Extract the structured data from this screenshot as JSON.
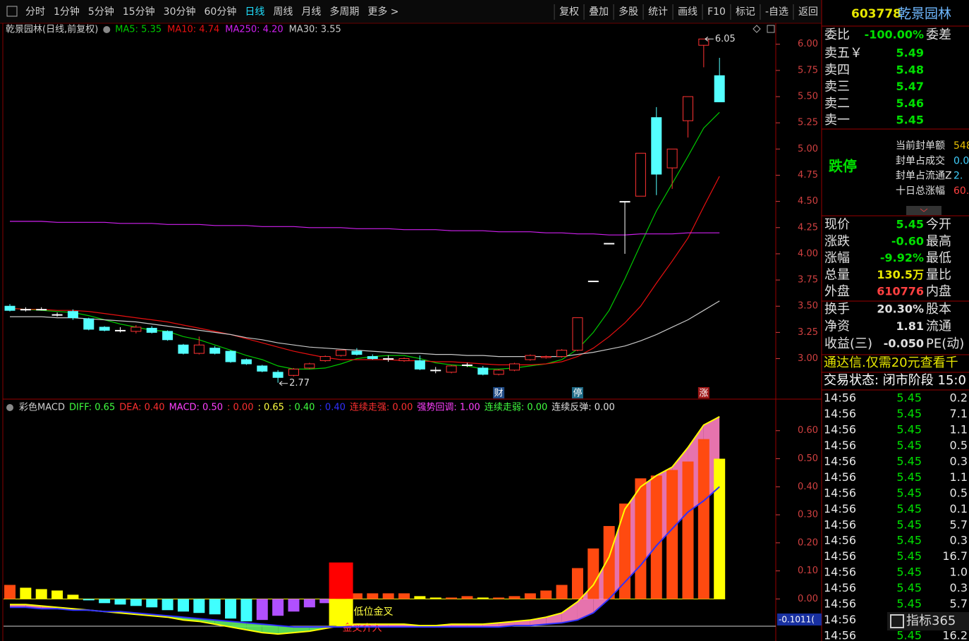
{
  "toolbar": {
    "left": [
      "分时",
      "1分钟",
      "5分钟",
      "15分钟",
      "30分钟",
      "60分钟",
      "日线",
      "周线",
      "月线",
      "多周期",
      "更多 >"
    ],
    "active_index": 6,
    "right": [
      "复权",
      "叠加",
      "多股",
      "统计",
      "画线",
      "F10",
      "标记",
      "-自选",
      "返回"
    ]
  },
  "chart_data": [
    {
      "type": "candlestick",
      "title": "乾景园林(日线,前复权)",
      "up_color": "#ff3232",
      "down_color": "#54ffff",
      "flat_color": "#ffffff",
      "candles": [
        [
          3.5,
          3.52,
          3.45,
          3.46
        ],
        [
          3.47,
          3.49,
          3.45,
          3.47
        ],
        [
          3.47,
          3.49,
          3.46,
          3.47
        ],
        [
          3.42,
          3.44,
          3.4,
          3.42
        ],
        [
          3.45,
          3.47,
          3.37,
          3.39
        ],
        [
          3.38,
          3.39,
          3.27,
          3.28
        ],
        [
          3.3,
          3.31,
          3.26,
          3.27
        ],
        [
          3.27,
          3.3,
          3.25,
          3.27
        ],
        [
          3.26,
          3.32,
          3.24,
          3.3
        ],
        [
          3.29,
          3.31,
          3.24,
          3.25
        ],
        [
          3.26,
          3.27,
          3.17,
          3.18
        ],
        [
          3.13,
          3.14,
          3.04,
          3.05
        ],
        [
          3.05,
          3.21,
          3.04,
          3.13
        ],
        [
          3.1,
          3.12,
          3.04,
          3.05
        ],
        [
          3.07,
          3.08,
          2.96,
          2.97
        ],
        [
          2.99,
          3.0,
          2.94,
          2.95
        ],
        [
          2.93,
          2.94,
          2.87,
          2.88
        ],
        [
          2.87,
          2.89,
          2.77,
          2.82
        ],
        [
          2.84,
          2.91,
          2.83,
          2.9
        ],
        [
          2.91,
          2.96,
          2.9,
          2.95
        ],
        [
          2.98,
          3.03,
          2.97,
          3.02
        ],
        [
          3.03,
          3.08,
          3.02,
          3.08
        ],
        [
          3.07,
          3.1,
          3.03,
          3.04
        ],
        [
          3.02,
          3.04,
          2.99,
          3.0
        ],
        [
          3.0,
          3.03,
          2.97,
          3.0
        ],
        [
          2.98,
          3.01,
          2.97,
          3.0
        ],
        [
          2.98,
          3.03,
          2.89,
          2.9
        ],
        [
          2.89,
          2.92,
          2.86,
          2.89
        ],
        [
          2.87,
          2.94,
          2.86,
          2.93
        ],
        [
          2.94,
          2.96,
          2.92,
          2.94
        ],
        [
          2.91,
          2.93,
          2.84,
          2.85
        ],
        [
          2.85,
          2.9,
          2.84,
          2.89
        ],
        [
          2.89,
          2.96,
          2.88,
          2.95
        ],
        [
          2.99,
          3.04,
          2.98,
          3.03
        ],
        [
          3.01,
          3.03,
          3.0,
          3.02
        ],
        [
          3.02,
          3.09,
          3.01,
          3.08
        ],
        [
          3.08,
          3.39,
          3.07,
          3.39
        ],
        [
          3.74,
          3.74,
          3.74,
          3.74
        ],
        [
          4.1,
          4.1,
          4.1,
          4.1
        ],
        [
          4.5,
          4.5,
          4.0,
          4.5
        ],
        [
          4.55,
          4.96,
          4.55,
          4.96
        ],
        [
          5.3,
          5.4,
          4.56,
          4.76
        ],
        [
          4.82,
          5.0,
          4.62,
          5.0
        ],
        [
          5.27,
          5.5,
          5.11,
          5.5
        ],
        [
          5.99,
          6.05,
          5.78,
          6.05
        ],
        [
          5.7,
          5.87,
          5.45,
          5.45
        ]
      ],
      "series": [
        {
          "name": "MA5: 5.35",
          "color": "#00c800",
          "values": [
            3.48,
            3.47,
            3.46,
            3.45,
            3.44,
            3.41,
            3.37,
            3.33,
            3.3,
            3.27,
            3.26,
            3.21,
            3.18,
            3.13,
            3.08,
            3.03,
            2.99,
            2.93,
            2.9,
            2.9,
            2.91,
            2.95,
            3.0,
            3.02,
            3.03,
            3.03,
            3.0,
            2.96,
            2.94,
            2.93,
            2.9,
            2.9,
            2.91,
            2.93,
            2.95,
            2.99,
            3.09,
            3.25,
            3.46,
            3.76,
            4.09,
            4.41,
            4.67,
            4.93,
            5.2,
            5.35
          ]
        },
        {
          "name": "MA10: 4.74",
          "color": "#e81010",
          "values": [
            3.48,
            3.47,
            3.47,
            3.46,
            3.46,
            3.45,
            3.43,
            3.41,
            3.39,
            3.37,
            3.35,
            3.32,
            3.29,
            3.26,
            3.23,
            3.19,
            3.15,
            3.11,
            3.07,
            3.04,
            3.01,
            2.99,
            2.99,
            2.99,
            2.99,
            2.98,
            2.98,
            2.97,
            2.97,
            2.96,
            2.95,
            2.94,
            2.94,
            2.94,
            2.95,
            2.97,
            3.02,
            3.1,
            3.21,
            3.34,
            3.5,
            3.72,
            3.93,
            4.15,
            4.45,
            4.74
          ]
        },
        {
          "name": "MA250: 4.20",
          "color": "#d020f0",
          "values": [
            4.31,
            4.31,
            4.31,
            4.3,
            4.3,
            4.3,
            4.3,
            4.29,
            4.29,
            4.29,
            4.28,
            4.28,
            4.28,
            4.27,
            4.27,
            4.27,
            4.26,
            4.26,
            4.26,
            4.25,
            4.25,
            4.25,
            4.24,
            4.24,
            4.24,
            4.23,
            4.23,
            4.23,
            4.22,
            4.22,
            4.22,
            4.21,
            4.21,
            4.21,
            4.2,
            4.2,
            4.19,
            4.19,
            4.18,
            4.18,
            4.19,
            4.19,
            4.19,
            4.2,
            4.2,
            4.2
          ]
        },
        {
          "name": "MA30: 3.55",
          "color": "#c8c8c8",
          "values": [
            3.4,
            3.4,
            3.4,
            3.39,
            3.39,
            3.38,
            3.37,
            3.36,
            3.35,
            3.33,
            3.31,
            3.29,
            3.27,
            3.25,
            3.23,
            3.2,
            3.18,
            3.15,
            3.13,
            3.11,
            3.1,
            3.09,
            3.08,
            3.07,
            3.06,
            3.05,
            3.05,
            3.04,
            3.04,
            3.03,
            3.03,
            3.02,
            3.02,
            3.02,
            3.02,
            3.02,
            3.04,
            3.06,
            3.09,
            3.12,
            3.17,
            3.23,
            3.3,
            3.37,
            3.46,
            3.55
          ]
        }
      ],
      "events": [
        {
          "label": "财",
          "at": 31,
          "color": "#1e4a86"
        },
        {
          "label": "停",
          "at": 36,
          "color": "#1e6a86"
        },
        {
          "label": "涨",
          "at": 44,
          "color": "#a01818"
        }
      ],
      "ylim": [
        2.62,
        6.2
      ],
      "yticks": [
        {
          "value": 6,
          "label": "6.00"
        },
        {
          "value": 5.75,
          "label": "5.75"
        },
        {
          "value": 5.5,
          "label": "5.50"
        },
        {
          "value": 5.25,
          "label": "5.25"
        },
        {
          "value": 5,
          "label": "5.00"
        },
        {
          "value": 4.75,
          "label": "4.75"
        },
        {
          "value": 4.5,
          "label": "4.50"
        },
        {
          "value": 4.25,
          "label": "4.25"
        },
        {
          "value": 4,
          "label": "4.00"
        },
        {
          "value": 3.75,
          "label": "3.75"
        },
        {
          "value": 3.5,
          "label": "3.50"
        },
        {
          "value": 3.25,
          "label": "3.25"
        },
        {
          "value": 3,
          "label": "3.00"
        }
      ]
    },
    {
      "type": "macd",
      "title": "彩色MACD",
      "series": [
        {
          "name": "DIFF: 0.65",
          "color": "#ffff00",
          "values": [
            -0.02,
            -0.02,
            -0.025,
            -0.03,
            -0.035,
            -0.04,
            -0.045,
            -0.05,
            -0.055,
            -0.06,
            -0.065,
            -0.075,
            -0.08,
            -0.09,
            -0.1,
            -0.11,
            -0.12,
            -0.125,
            -0.12,
            -0.115,
            -0.105,
            -0.095,
            -0.09,
            -0.09,
            -0.09,
            -0.09,
            -0.095,
            -0.095,
            -0.09,
            -0.09,
            -0.09,
            -0.085,
            -0.08,
            -0.075,
            -0.065,
            -0.05,
            -0.01,
            0.05,
            0.15,
            0.32,
            0.4,
            0.44,
            0.47,
            0.54,
            0.62,
            0.65
          ]
        },
        {
          "name": "DEA: 0.40",
          "color": "#3030ff",
          "values": [
            -0.03,
            -0.03,
            -0.035,
            -0.035,
            -0.04,
            -0.04,
            -0.045,
            -0.045,
            -0.05,
            -0.055,
            -0.06,
            -0.065,
            -0.07,
            -0.075,
            -0.08,
            -0.085,
            -0.09,
            -0.095,
            -0.1,
            -0.1,
            -0.1,
            -0.1,
            -0.1,
            -0.1,
            -0.1,
            -0.1,
            -0.1,
            -0.1,
            -0.1,
            -0.1,
            -0.1,
            -0.1,
            -0.095,
            -0.095,
            -0.09,
            -0.085,
            -0.075,
            -0.05,
            0,
            0.06,
            0.12,
            0.19,
            0.25,
            0.31,
            0.35,
            0.4
          ]
        }
      ],
      "histogram": {
        "name": "MACD: 0.50",
        "color": "#ff40ff",
        "values": [
          0.05,
          0.04,
          0.035,
          0.03,
          0.015,
          -0.005,
          -0.015,
          -0.02,
          -0.025,
          -0.03,
          -0.04,
          -0.045,
          -0.05,
          -0.055,
          -0.07,
          -0.08,
          -0.075,
          -0.06,
          -0.045,
          -0.03,
          -0.015,
          0.005,
          0.02,
          0.02,
          0.02,
          0.02,
          0.01,
          0.005,
          0.005,
          0.01,
          0.005,
          0.005,
          0.01,
          0.02,
          0.03,
          0.05,
          0.11,
          0.18,
          0.26,
          0.34,
          0.43,
          0.44,
          0.46,
          0.49,
          0.57,
          0.5
        ]
      },
      "legend": [
        {
          "text": ": 0.00",
          "color": "#ff3030"
        },
        {
          "text": ": 0.65",
          "color": "#ffff40"
        },
        {
          "text": ": 0.40",
          "color": "#40ff40"
        },
        {
          "text": ": 0.40",
          "color": "#3030ff"
        },
        {
          "text": "连续走强: 0.00",
          "color": "#ff3030"
        },
        {
          "text": "强势回调: 1.00",
          "color": "#ff40ff"
        },
        {
          "text": "连续走弱: 0.00",
          "color": "#40ff40"
        },
        {
          "text": "连续反弹: 0.00",
          "color": "#e0e0e0"
        }
      ],
      "signal_bar": {
        "at": 21,
        "high": 0.13,
        "low": -0.095
      },
      "signal_labels": [
        "低位金叉",
        "金叉介入"
      ],
      "cursor_label": "-0.1011(",
      "ylim": [
        -0.15,
        0.71
      ],
      "yticks": [
        {
          "value": 0.6,
          "label": "0.60"
        },
        {
          "value": 0.5,
          "label": "0.50"
        },
        {
          "value": 0.4,
          "label": "0.40"
        },
        {
          "value": 0.3,
          "label": "0.30"
        },
        {
          "value": 0.2,
          "label": "0.20"
        },
        {
          "value": 0.1,
          "label": "0.10"
        },
        {
          "value": 0,
          "label": "0.00"
        }
      ]
    }
  ],
  "quote": {
    "code": "603778",
    "name": "乾景园林",
    "ratio_label": "委比",
    "ratio": "-100.00%",
    "diff_label": "委差",
    "asks": [
      {
        "label": "卖五￥",
        "price": "5.49"
      },
      {
        "label": "卖四",
        "price": "5.48"
      },
      {
        "label": "卖三",
        "price": "5.47"
      },
      {
        "label": "卖二",
        "price": "5.46"
      },
      {
        "label": "卖一",
        "price": "5.45"
      }
    ],
    "limit": "跌停",
    "seal": [
      {
        "label": "当前封单额",
        "value": "548",
        "color": "#e8c000"
      },
      {
        "label": "封单占成交",
        "value": "0.0",
        "color": "#40d0ff"
      },
      {
        "label": "封单占流通Z",
        "value": "2.",
        "color": "#40d0ff"
      },
      {
        "label": "十日总涨幅",
        "value": "60.",
        "color": "#ff4040"
      }
    ],
    "stats": [
      {
        "label": "现价",
        "value": "5.45",
        "right": "今开",
        "color": "#00e000"
      },
      {
        "label": "涨跌",
        "value": "-0.60",
        "right": "最高",
        "color": "#00e000"
      },
      {
        "label": "涨幅",
        "value": "-9.92%",
        "right": "最低",
        "color": "#00e000"
      },
      {
        "label": "总量",
        "value": "130.5万",
        "right": "量比",
        "color": "#e8e800"
      },
      {
        "label": "外盘",
        "value": "610776",
        "right": "内盘",
        "color": "#ff4040"
      },
      {
        "label": "换手",
        "value": "20.30%",
        "right": "股本",
        "color": "#e0e0e0"
      },
      {
        "label": "净资",
        "value": "1.81",
        "right": "流通",
        "color": "#e0e0e0"
      },
      {
        "label": "收益(三)",
        "value": "-0.050",
        "right": "PE(动)",
        "color": "#e0e0e0"
      }
    ],
    "ad": "通达信.仅需20元查看千",
    "status": "交易状态: 闭市阶段 15:0"
  },
  "ticks": [
    {
      "time": "14:56",
      "price": "5.45",
      "vol": "0.2"
    },
    {
      "time": "14:56",
      "price": "5.45",
      "vol": "7.1"
    },
    {
      "time": "14:56",
      "price": "5.45",
      "vol": "1.1"
    },
    {
      "time": "14:56",
      "price": "5.45",
      "vol": "0.5"
    },
    {
      "time": "14:56",
      "price": "5.45",
      "vol": "0.3"
    },
    {
      "time": "14:56",
      "price": "5.45",
      "vol": "1.1"
    },
    {
      "time": "14:56",
      "price": "5.45",
      "vol": "0.5"
    },
    {
      "time": "14:56",
      "price": "5.45",
      "vol": "0.1"
    },
    {
      "time": "14:56",
      "price": "5.45",
      "vol": "5.7"
    },
    {
      "time": "14:56",
      "price": "5.45",
      "vol": "0.3"
    },
    {
      "time": "14:56",
      "price": "5.45",
      "vol": "16.7"
    },
    {
      "time": "14:56",
      "price": "5.45",
      "vol": "1.0"
    },
    {
      "time": "14:56",
      "price": "5.45",
      "vol": "0.3"
    },
    {
      "time": "14:56",
      "price": "5.45",
      "vol": "5.7"
    },
    {
      "time": "14:56"
    },
    {
      "time": "14:56",
      "price": "5.45",
      "vol": "16.2"
    }
  ],
  "watermark": "指标365"
}
